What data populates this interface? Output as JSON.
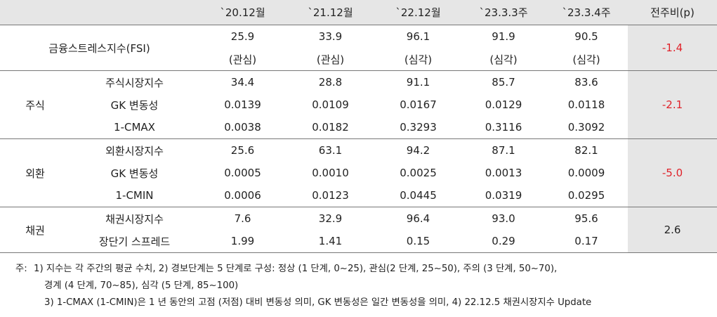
{
  "header": {
    "blank": "",
    "periods": [
      "`20.12월",
      "`21.12월",
      "`22.12월",
      "`23.3.3주",
      "`23.3.4주"
    ],
    "change": "전주비(p)"
  },
  "fsi": {
    "label": "금융스트레스지수(FSI)",
    "values": [
      "25.9",
      "33.9",
      "96.1",
      "91.9",
      "90.5"
    ],
    "status": [
      "(관심)",
      "(관심)",
      "(심각)",
      "(심각)",
      "(심각)"
    ],
    "change": "-1.4"
  },
  "stock": {
    "group": "주식",
    "rows": [
      {
        "label": "주식시장지수",
        "values": [
          "34.4",
          "28.8",
          "91.1",
          "85.7",
          "83.6"
        ]
      },
      {
        "label": "GK 변동성",
        "values": [
          "0.0139",
          "0.0109",
          "0.0167",
          "0.0129",
          "0.0118"
        ]
      },
      {
        "label": "1-CMAX",
        "values": [
          "0.0038",
          "0.0182",
          "0.3293",
          "0.3116",
          "0.3092"
        ]
      }
    ],
    "change": "-2.1"
  },
  "fx": {
    "group": "외환",
    "rows": [
      {
        "label": "외환시장지수",
        "values": [
          "25.6",
          "63.1",
          "94.2",
          "87.1",
          "82.1"
        ]
      },
      {
        "label": "GK 변동성",
        "values": [
          "0.0005",
          "0.0010",
          "0.0025",
          "0.0013",
          "0.0009"
        ]
      },
      {
        "label": "1-CMIN",
        "values": [
          "0.0006",
          "0.0123",
          "0.0445",
          "0.0319",
          "0.0295"
        ]
      }
    ],
    "change": "-5.0"
  },
  "bond": {
    "group": "채권",
    "rows": [
      {
        "label": "채권시장지수",
        "values": [
          "7.6",
          "32.9",
          "96.4",
          "93.0",
          "95.6"
        ]
      },
      {
        "label": "장단기 스프레드",
        "values": [
          "1.99",
          "1.41",
          "0.15",
          "0.29",
          "0.17"
        ]
      }
    ],
    "change": "2.6"
  },
  "notes": {
    "prefix": "주:",
    "line1": "1) 지수는 각 주간의 평균 수치, 2) 경보단계는 5 단계로 구성: 정상 (1 단계, 0~25), 관심(2 단계, 25~50), 주의 (3 단계, 50~70),",
    "line2": "경계 (4 단계, 70~85), 심각 (5 단계, 85~100)",
    "line3": "3) 1-CMAX (1-CMIN)은 1 년 동안의 고점 (저점) 대비 변동성 의미, GK 변동성은 일간 변동성을 의미, 4) 22.12.5 채권시장지수 Update"
  },
  "colors": {
    "negative": "#e0222a",
    "header_bg": "#e6e6e6"
  }
}
